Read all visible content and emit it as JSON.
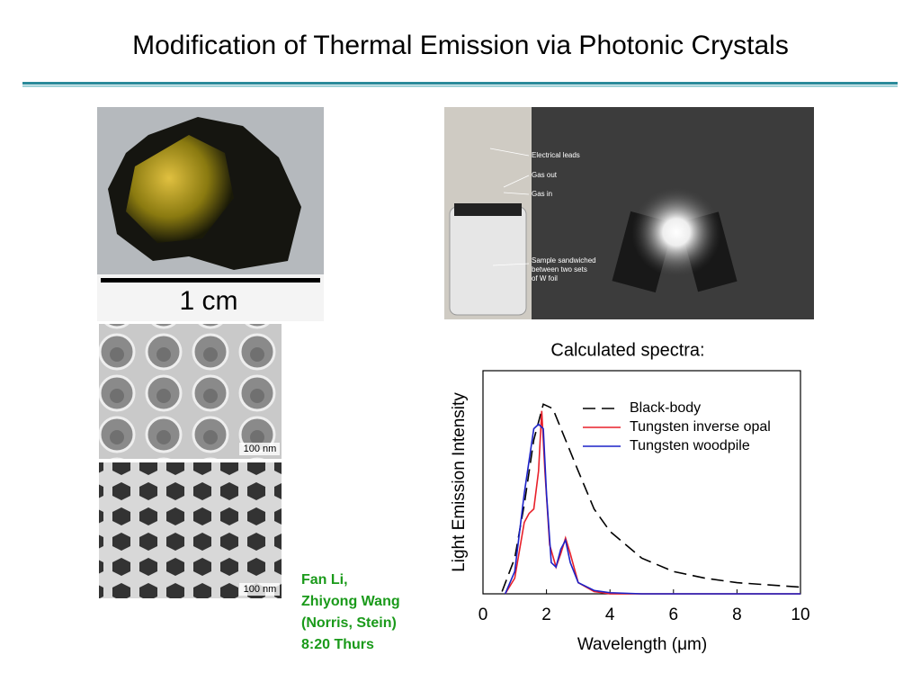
{
  "title": "Modification of Thermal Emission via Photonic Crystals",
  "photos": {
    "scale_label": "1 cm",
    "sem_scale_1": "100 nm",
    "sem_scale_2": "100 nm",
    "lead_label": "Electrical leads",
    "gas_out_label": "Gas out",
    "gas_in_label": "Gas in",
    "sample_label": [
      "Sample sandwiched",
      "between two sets",
      "of W foil"
    ]
  },
  "caption": "Calculated spectra:",
  "credits": [
    "Fan Li,",
    "Zhiyong Wang",
    "(Norris, Stein)",
    "8:20 Thurs"
  ],
  "chart_data": {
    "type": "line",
    "x_label": "Wavelength (μm)",
    "y_label": "Light Emission Intensity",
    "xlim": [
      0,
      10
    ],
    "xticks": [
      0,
      2,
      4,
      6,
      8,
      10
    ],
    "ylim": [
      0,
      1
    ],
    "legend": "upper right",
    "series": [
      {
        "name": "Black-body",
        "color": "#000000",
        "dashed": true,
        "x": [
          0.6,
          1.0,
          1.3,
          1.6,
          1.9,
          2.2,
          2.6,
          3,
          3.5,
          4,
          5,
          6,
          7,
          8,
          9,
          10
        ],
        "values": [
          0.01,
          0.16,
          0.4,
          0.69,
          0.85,
          0.83,
          0.69,
          0.55,
          0.38,
          0.28,
          0.16,
          0.1,
          0.07,
          0.05,
          0.04,
          0.03
        ]
      },
      {
        "name": "Tungsten inverse opal",
        "color": "#e8202a",
        "dashed": false,
        "x": [
          0.7,
          1.0,
          1.3,
          1.45,
          1.6,
          1.75,
          1.85,
          1.95,
          2.1,
          2.3,
          2.45,
          2.6,
          2.75,
          3,
          3.5,
          4,
          10
        ],
        "values": [
          0,
          0.07,
          0.32,
          0.36,
          0.38,
          0.55,
          0.82,
          0.55,
          0.22,
          0.12,
          0.18,
          0.25,
          0.18,
          0.05,
          0.01,
          0,
          0
        ]
      },
      {
        "name": "Tungsten woodpile",
        "color": "#1c22c8",
        "dashed": false,
        "x": [
          0.7,
          1.0,
          1.3,
          1.6,
          1.75,
          1.9,
          2.0,
          2.15,
          2.3,
          2.45,
          2.6,
          2.75,
          3,
          3.5,
          4,
          5,
          10
        ],
        "values": [
          0,
          0.1,
          0.45,
          0.74,
          0.76,
          0.74,
          0.45,
          0.14,
          0.12,
          0.2,
          0.24,
          0.14,
          0.05,
          0.015,
          0.005,
          0,
          0
        ]
      }
    ]
  }
}
